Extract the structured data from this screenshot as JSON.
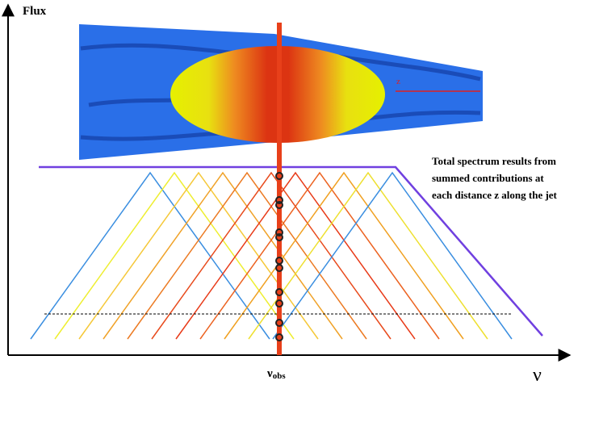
{
  "labels": {
    "y_axis": "Flux",
    "x_axis": "ν",
    "x_marker": "ν",
    "x_marker_sub": "obs",
    "jet_axis": "z"
  },
  "annotation": {
    "lines": [
      "Total spectrum results from",
      "summed contributions at",
      "each distance z along the jet"
    ]
  }
}
